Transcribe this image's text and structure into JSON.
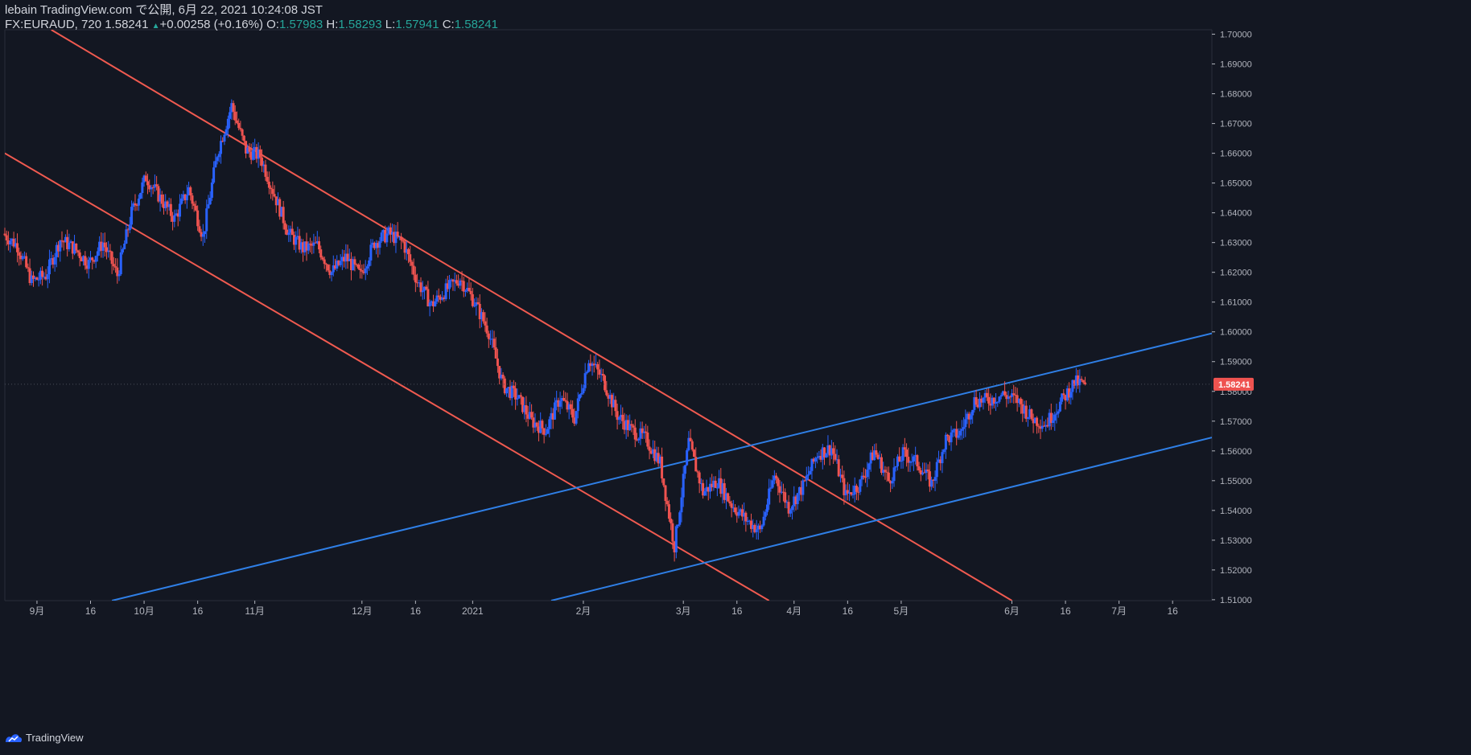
{
  "header": {
    "publisher": "lebain TradingView.com で公開, 6月 22, 2021 10:24:08 JST",
    "symbol": "FX:EURAUD, 720",
    "last": "1.58241",
    "change_arrow": "▲",
    "change": "+0.00258 (+0.16%)",
    "o_label": "O:",
    "o": "1.57983",
    "h_label": "H:",
    "h": "1.58293",
    "l_label": "L:",
    "l": "1.57941",
    "c_label": "C:",
    "c": "1.58241"
  },
  "footer": {
    "brand": "TradingView",
    "logo_icon": "tradingview-logo-icon"
  },
  "colors": {
    "background": "#131722",
    "up": "#2962ff",
    "down": "#ef5350",
    "channel_down": "#f05a50",
    "channel_up": "#2f7fe6",
    "axis_text": "#b2b5be"
  },
  "chart_data": {
    "type": "candlestick",
    "symbol": "FX:EURAUD",
    "interval": "720",
    "price_axis_labels": [
      "1.70000",
      "1.69000",
      "1.68000",
      "1.67000",
      "1.66000",
      "1.65000",
      "1.64000",
      "1.63000",
      "1.62000",
      "1.61000",
      "1.60000",
      "1.59000",
      "1.58000",
      "1.57000",
      "1.56000",
      "1.55000",
      "1.54000",
      "1.53000",
      "1.52000",
      "1.51000"
    ],
    "ylim": [
      1.5097,
      1.7015
    ],
    "time_axis_labels": [
      "9月",
      "16",
      "10月",
      "16",
      "11月",
      "12月",
      "16",
      "2021",
      "2月",
      "3月",
      "16",
      "4月",
      "16",
      "5月",
      "6月",
      "16",
      "7月",
      "16"
    ],
    "time_axis_dates": [
      "2020-09-01",
      "2020-09-16",
      "2020-10-01",
      "2020-10-16",
      "2020-11-01",
      "2020-12-01",
      "2020-12-16",
      "2021-01-01",
      "2021-02-01",
      "2021-03-01",
      "2021-03-16",
      "2021-04-01",
      "2021-04-16",
      "2021-05-01",
      "2021-06-01",
      "2021-06-16",
      "2021-07-01",
      "2021-07-16"
    ],
    "xlim": [
      "2020-08-23",
      "2021-07-27"
    ],
    "last_price_label": "1.58241",
    "last_price": 1.58241,
    "closes": [
      [
        "2020-08-23",
        1.633
      ],
      [
        "2020-08-27",
        1.629
      ],
      [
        "2020-08-31",
        1.617
      ],
      [
        "2020-09-04",
        1.619
      ],
      [
        "2020-09-08",
        1.631
      ],
      [
        "2020-09-12",
        1.628
      ],
      [
        "2020-09-16",
        1.623
      ],
      [
        "2020-09-20",
        1.63
      ],
      [
        "2020-09-24",
        1.619
      ],
      [
        "2020-09-28",
        1.64
      ],
      [
        "2020-10-02",
        1.652
      ],
      [
        "2020-10-06",
        1.645
      ],
      [
        "2020-10-10",
        1.638
      ],
      [
        "2020-10-14",
        1.648
      ],
      [
        "2020-10-18",
        1.632
      ],
      [
        "2020-10-22",
        1.66
      ],
      [
        "2020-10-26",
        1.676
      ],
      [
        "2020-10-30",
        1.661
      ],
      [
        "2020-11-03",
        1.659
      ],
      [
        "2020-11-07",
        1.646
      ],
      [
        "2020-11-11",
        1.633
      ],
      [
        "2020-11-15",
        1.628
      ],
      [
        "2020-11-19",
        1.629
      ],
      [
        "2020-11-23",
        1.62
      ],
      [
        "2020-11-27",
        1.625
      ],
      [
        "2020-12-01",
        1.619
      ],
      [
        "2020-12-05",
        1.63
      ],
      [
        "2020-12-09",
        1.633
      ],
      [
        "2020-12-13",
        1.63
      ],
      [
        "2020-12-17",
        1.617
      ],
      [
        "2020-12-21",
        1.609
      ],
      [
        "2020-12-25",
        1.614
      ],
      [
        "2020-12-29",
        1.618
      ],
      [
        "2021-01-02",
        1.61
      ],
      [
        "2021-01-06",
        1.6
      ],
      [
        "2021-01-10",
        1.582
      ],
      [
        "2021-01-14",
        1.578
      ],
      [
        "2021-01-18",
        1.57
      ],
      [
        "2021-01-22",
        1.567
      ],
      [
        "2021-01-26",
        1.578
      ],
      [
        "2021-01-30",
        1.571
      ],
      [
        "2021-02-03",
        1.591
      ],
      [
        "2021-02-07",
        1.584
      ],
      [
        "2021-02-11",
        1.572
      ],
      [
        "2021-02-15",
        1.567
      ],
      [
        "2021-02-19",
        1.564
      ],
      [
        "2021-02-23",
        1.556
      ],
      [
        "2021-02-27",
        1.528
      ],
      [
        "2021-03-03",
        1.563
      ],
      [
        "2021-03-07",
        1.546
      ],
      [
        "2021-03-11",
        1.55
      ],
      [
        "2021-03-15",
        1.542
      ],
      [
        "2021-03-19",
        1.537
      ],
      [
        "2021-03-23",
        1.533
      ],
      [
        "2021-03-27",
        1.552
      ],
      [
        "2021-03-31",
        1.541
      ],
      [
        "2021-04-04",
        1.548
      ],
      [
        "2021-04-08",
        1.559
      ],
      [
        "2021-04-12",
        1.561
      ],
      [
        "2021-04-16",
        1.545
      ],
      [
        "2021-04-20",
        1.549
      ],
      [
        "2021-04-24",
        1.56
      ],
      [
        "2021-04-28",
        1.55
      ],
      [
        "2021-05-02",
        1.559
      ],
      [
        "2021-05-06",
        1.556
      ],
      [
        "2021-05-10",
        1.549
      ],
      [
        "2021-05-14",
        1.564
      ],
      [
        "2021-05-18",
        1.566
      ],
      [
        "2021-05-22",
        1.577
      ],
      [
        "2021-05-26",
        1.577
      ],
      [
        "2021-05-30",
        1.579
      ],
      [
        "2021-06-03",
        1.577
      ],
      [
        "2021-06-07",
        1.571
      ],
      [
        "2021-06-11",
        1.569
      ],
      [
        "2021-06-15",
        1.576
      ],
      [
        "2021-06-19",
        1.583
      ],
      [
        "2021-06-22",
        1.58241
      ]
    ],
    "trendlines": [
      {
        "color": "down",
        "from": [
          "2020-09-05",
          1.7015
        ],
        "to": [
          "2021-06-01",
          1.5097
        ]
      },
      {
        "color": "down",
        "from": [
          "2020-08-23",
          1.66
        ],
        "to": [
          "2021-03-25",
          1.5097
        ]
      },
      {
        "color": "up",
        "from": [
          "2020-09-22",
          1.5097
        ],
        "to": [
          "2021-07-27",
          1.5995
        ]
      },
      {
        "color": "up",
        "from": [
          "2021-01-23",
          1.5097
        ],
        "to": [
          "2021-07-27",
          1.5645
        ]
      }
    ]
  }
}
